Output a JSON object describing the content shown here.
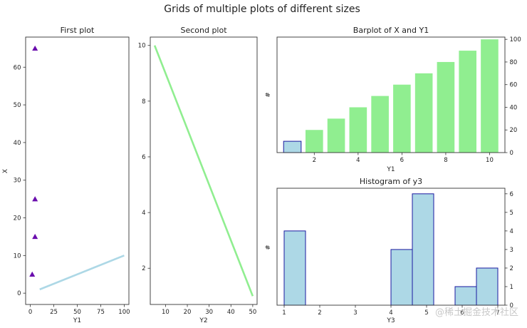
{
  "figure": {
    "suptitle": "Grids of multiple plots of different sizes",
    "watermark": "@稀土掘金技术社区"
  },
  "colors": {
    "scatter_marker": "#6a0dad",
    "line1": "#add8e6",
    "line2": "#90ee90",
    "bar_fill": "#90ee90",
    "bar_highlight": "#add8e6",
    "bar_highlight_edge": "#1a1aa0",
    "hist_fill": "#add8e6",
    "hist_edge": "#1a1aa0"
  },
  "chart_data": [
    {
      "id": "first",
      "type": "scatter",
      "title": "First plot",
      "xlabel": "Y1",
      "ylabel": "X",
      "xlim": [
        -5,
        105
      ],
      "ylim": [
        -3,
        68
      ],
      "xticks": [
        0,
        25,
        50,
        75,
        100
      ],
      "yticks": [
        0,
        10,
        20,
        30,
        40,
        50,
        60
      ],
      "scatter": {
        "marker": "triangle",
        "x": [
          2,
          5,
          5,
          5
        ],
        "y": [
          5,
          15,
          25,
          65
        ]
      },
      "line": {
        "x": [
          10,
          100
        ],
        "y": [
          1,
          10
        ]
      }
    },
    {
      "id": "second",
      "type": "line",
      "title": "Second plot",
      "xlabel": "Y2",
      "ylabel": "",
      "xlim": [
        3,
        52
      ],
      "ylim": [
        0.7,
        10.3
      ],
      "xticks": [
        10,
        20,
        30,
        40,
        50
      ],
      "yticks": [
        2,
        4,
        6,
        8,
        10
      ],
      "line": {
        "x": [
          5,
          50
        ],
        "y": [
          10,
          1
        ]
      }
    },
    {
      "id": "bar",
      "type": "bar",
      "title": "Barplot of X and Y1",
      "xlabel": "Y1",
      "ylabel": "#",
      "xlim": [
        0.3,
        10.7
      ],
      "ylim": [
        0,
        102
      ],
      "xticks": [
        2,
        4,
        6,
        8,
        10
      ],
      "yticks": [
        0,
        20,
        40,
        60,
        80,
        100
      ],
      "yaxis_side": "right",
      "categories": [
        1,
        2,
        3,
        4,
        5,
        6,
        7,
        8,
        9,
        10
      ],
      "values": [
        10,
        20,
        30,
        40,
        50,
        60,
        70,
        80,
        90,
        100
      ],
      "highlight_index": 0
    },
    {
      "id": "hist",
      "type": "bar",
      "title": "Histogram of y3",
      "xlabel": "Y3",
      "ylabel": "#",
      "xlim": [
        0.8,
        7.2
      ],
      "ylim": [
        0,
        6.3
      ],
      "xticks": [
        1,
        2,
        3,
        4,
        5,
        6,
        7
      ],
      "yticks": [
        0,
        1,
        2,
        3,
        4,
        5,
        6
      ],
      "yaxis_side": "right",
      "bins": [
        1,
        1.6,
        2.2,
        2.8,
        3.4,
        4.0,
        4.6,
        5.2,
        5.8,
        6.4,
        7.0
      ],
      "counts": [
        4,
        0,
        0,
        0,
        0,
        3,
        6,
        0,
        1,
        2
      ]
    }
  ]
}
